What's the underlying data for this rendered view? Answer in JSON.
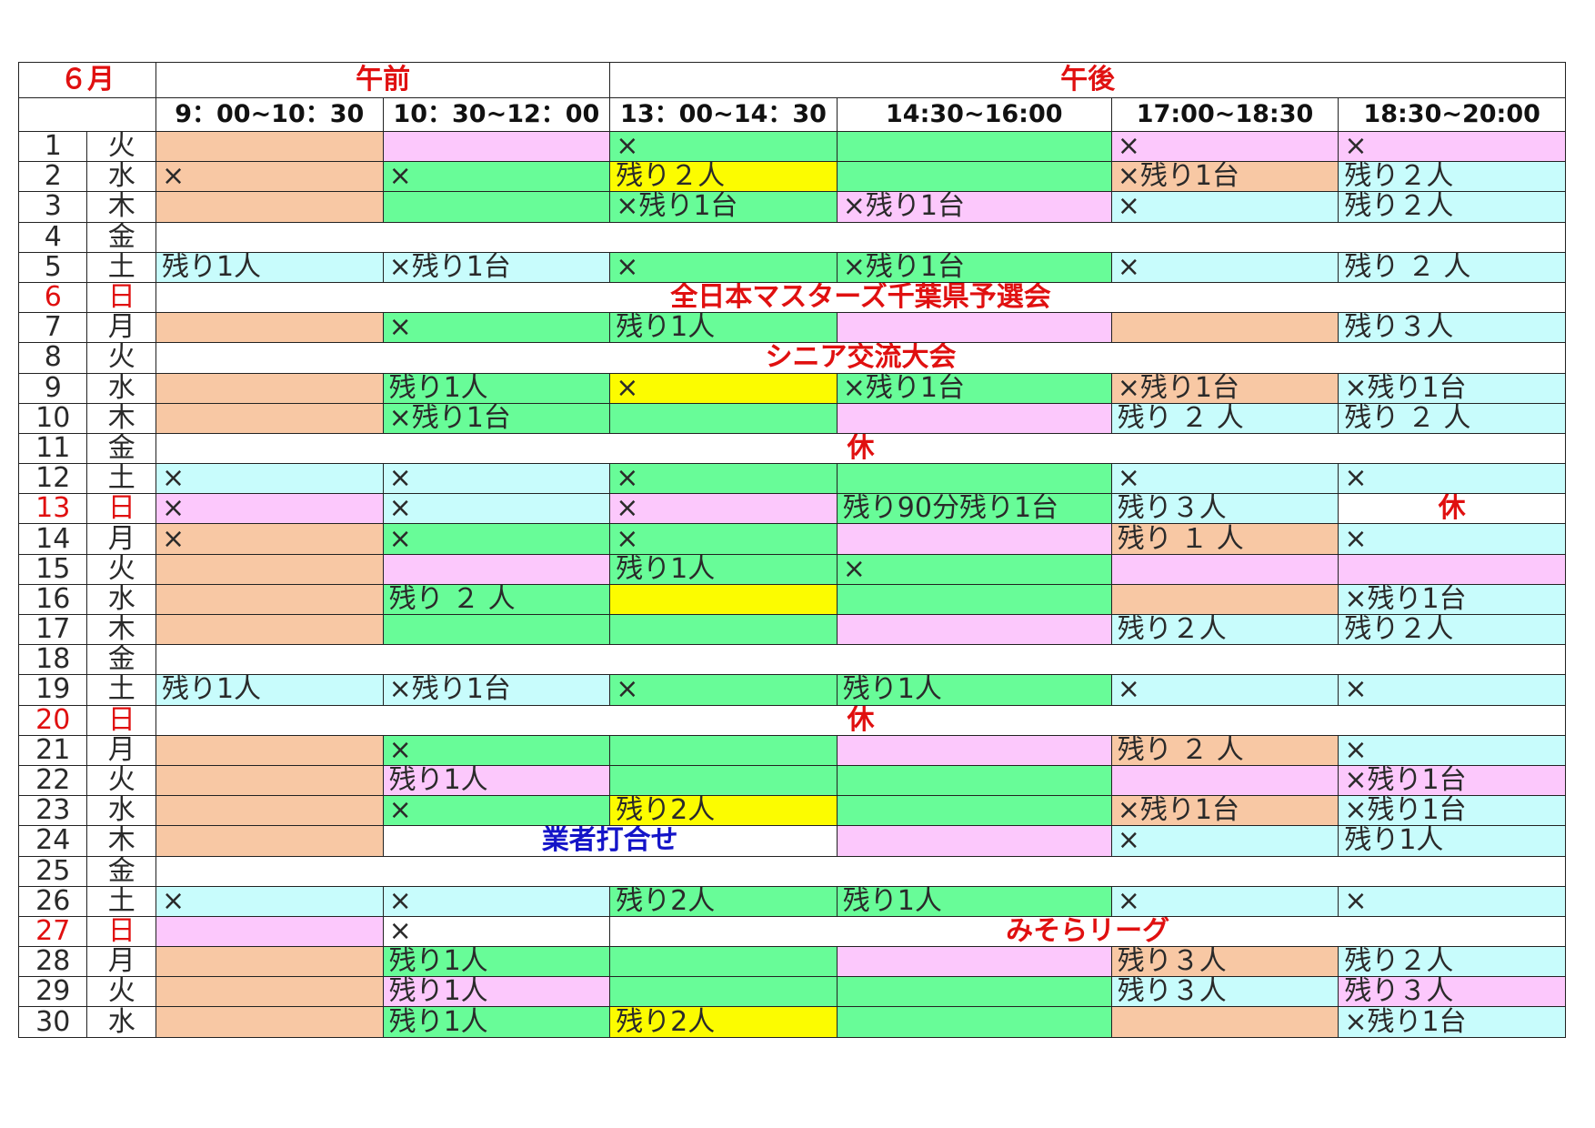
{
  "month_label": "６月",
  "am_label": "午前",
  "pm_label": "午後",
  "slots": [
    "9：00~10：30",
    "10：30~12：00",
    "13：00~14：30",
    "14:30~16:00",
    "17:00~18:30",
    "18:30~20:00"
  ],
  "colors": {
    "peach": "#f8c8a4",
    "pink": "#fcc8fc",
    "green": "#68fc98",
    "cyan": "#c8fcfc",
    "yellow": "#fcfc00",
    "white": "#ffffff",
    "holiday_red": "#e01010",
    "blue_text": "#1414c8"
  },
  "days": [
    {
      "d": "1",
      "w": "火",
      "cells": [
        {
          "t": "",
          "c": "peach"
        },
        {
          "t": "",
          "c": "pink"
        },
        {
          "t": "×",
          "c": "green"
        },
        {
          "t": "",
          "c": "green"
        },
        {
          "t": "×",
          "c": "pink"
        },
        {
          "t": "×",
          "c": "pink"
        }
      ]
    },
    {
      "d": "2",
      "w": "水",
      "cells": [
        {
          "t": "×",
          "c": "peach"
        },
        {
          "t": "×",
          "c": "green"
        },
        {
          "t": "残り２人",
          "c": "yellow"
        },
        {
          "t": "",
          "c": "green"
        },
        {
          "t": "×残り1台",
          "c": "peach"
        },
        {
          "t": "残り２人",
          "c": "cyan"
        }
      ]
    },
    {
      "d": "3",
      "w": "木",
      "cells": [
        {
          "t": "",
          "c": "peach"
        },
        {
          "t": "",
          "c": "green"
        },
        {
          "t": "×残り1台",
          "c": "green"
        },
        {
          "t": "×残り1台",
          "c": "pink"
        },
        {
          "t": "×",
          "c": "cyan"
        },
        {
          "t": "残り２人",
          "c": "cyan"
        }
      ]
    },
    {
      "d": "4",
      "w": "金",
      "span": {
        "from": 0,
        "cols": 6,
        "t": "",
        "c": "white"
      }
    },
    {
      "d": "5",
      "w": "土",
      "cells": [
        {
          "t": "残り1人",
          "c": "cyan"
        },
        {
          "t": "×残り1台",
          "c": "cyan"
        },
        {
          "t": "×",
          "c": "green"
        },
        {
          "t": "×残り1台",
          "c": "green"
        },
        {
          "t": "×",
          "c": "cyan"
        },
        {
          "t": "残り ２ 人",
          "c": "cyan"
        }
      ]
    },
    {
      "d": "6",
      "w": "日",
      "red": true,
      "span": {
        "from": 0,
        "cols": 6,
        "t": "全日本マスターズ千葉県予選会",
        "c": "white"
      }
    },
    {
      "d": "7",
      "w": "月",
      "cells": [
        {
          "t": "",
          "c": "peach"
        },
        {
          "t": "×",
          "c": "green"
        },
        {
          "t": "残り1人",
          "c": "green"
        },
        {
          "t": "",
          "c": "pink"
        },
        {
          "t": "",
          "c": "peach"
        },
        {
          "t": "残り３人",
          "c": "cyan"
        }
      ]
    },
    {
      "d": "8",
      "w": "火",
      "span": {
        "from": 0,
        "cols": 6,
        "t": "シニア交流大会",
        "c": "white"
      }
    },
    {
      "d": "9",
      "w": "水",
      "cells": [
        {
          "t": "",
          "c": "peach"
        },
        {
          "t": "残り1人",
          "c": "green"
        },
        {
          "t": "×",
          "c": "yellow"
        },
        {
          "t": "×残り1台",
          "c": "green"
        },
        {
          "t": "×残り1台",
          "c": "peach"
        },
        {
          "t": "×残り1台",
          "c": "cyan"
        }
      ]
    },
    {
      "d": "10",
      "w": "木",
      "cells": [
        {
          "t": "",
          "c": "peach"
        },
        {
          "t": "×残り1台",
          "c": "green"
        },
        {
          "t": "",
          "c": "green"
        },
        {
          "t": "",
          "c": "pink"
        },
        {
          "t": "残り ２ 人",
          "c": "cyan"
        },
        {
          "t": "残り ２ 人",
          "c": "cyan"
        }
      ]
    },
    {
      "d": "11",
      "w": "金",
      "span": {
        "from": 0,
        "cols": 6,
        "t": "休",
        "c": "white"
      }
    },
    {
      "d": "12",
      "w": "土",
      "cells": [
        {
          "t": "×",
          "c": "cyan"
        },
        {
          "t": "×",
          "c": "cyan"
        },
        {
          "t": "×",
          "c": "green"
        },
        {
          "t": "",
          "c": "green"
        },
        {
          "t": "×",
          "c": "cyan"
        },
        {
          "t": "×",
          "c": "cyan"
        }
      ]
    },
    {
      "d": "13",
      "w": "日",
      "red": true,
      "cells": [
        {
          "t": "×",
          "c": "pink"
        },
        {
          "t": "×",
          "c": "cyan"
        },
        {
          "t": "×",
          "c": "pink"
        },
        {
          "t": "残り90分残り1台",
          "c": "green"
        },
        {
          "t": "残り３人",
          "c": "cyan"
        },
        {
          "t": "休",
          "c": "white",
          "banner": true
        }
      ]
    },
    {
      "d": "14",
      "w": "月",
      "cells": [
        {
          "t": "×",
          "c": "peach"
        },
        {
          "t": "×",
          "c": "green"
        },
        {
          "t": "×",
          "c": "green"
        },
        {
          "t": "",
          "c": "pink"
        },
        {
          "t": "残り １ 人",
          "c": "peach"
        },
        {
          "t": "×",
          "c": "cyan"
        }
      ]
    },
    {
      "d": "15",
      "w": "火",
      "cells": [
        {
          "t": "",
          "c": "peach"
        },
        {
          "t": "",
          "c": "pink"
        },
        {
          "t": "残り1人",
          "c": "green"
        },
        {
          "t": "×",
          "c": "green"
        },
        {
          "t": "",
          "c": "pink"
        },
        {
          "t": "",
          "c": "pink"
        }
      ]
    },
    {
      "d": "16",
      "w": "水",
      "cells": [
        {
          "t": "",
          "c": "peach"
        },
        {
          "t": "残り ２ 人",
          "c": "green"
        },
        {
          "t": "",
          "c": "yellow"
        },
        {
          "t": "",
          "c": "green"
        },
        {
          "t": "",
          "c": "peach"
        },
        {
          "t": "×残り1台",
          "c": "cyan"
        }
      ]
    },
    {
      "d": "17",
      "w": "木",
      "cells": [
        {
          "t": "",
          "c": "peach"
        },
        {
          "t": "",
          "c": "green"
        },
        {
          "t": "",
          "c": "green"
        },
        {
          "t": "",
          "c": "pink"
        },
        {
          "t": "残り２人",
          "c": "cyan"
        },
        {
          "t": "残り２人",
          "c": "cyan"
        }
      ]
    },
    {
      "d": "18",
      "w": "金",
      "span": {
        "from": 0,
        "cols": 6,
        "t": "",
        "c": "white"
      }
    },
    {
      "d": "19",
      "w": "土",
      "cells": [
        {
          "t": "残り1人",
          "c": "cyan"
        },
        {
          "t": "×残り1台",
          "c": "cyan"
        },
        {
          "t": "×",
          "c": "green"
        },
        {
          "t": "残り1人",
          "c": "green"
        },
        {
          "t": "×",
          "c": "cyan"
        },
        {
          "t": "×",
          "c": "cyan"
        }
      ]
    },
    {
      "d": "20",
      "w": "日",
      "red": true,
      "span": {
        "from": 0,
        "cols": 6,
        "t": "休",
        "c": "white"
      }
    },
    {
      "d": "21",
      "w": "月",
      "cells": [
        {
          "t": "",
          "c": "peach"
        },
        {
          "t": "×",
          "c": "green"
        },
        {
          "t": "",
          "c": "green"
        },
        {
          "t": "",
          "c": "pink"
        },
        {
          "t": "残り ２ 人",
          "c": "peach"
        },
        {
          "t": "×",
          "c": "cyan"
        }
      ]
    },
    {
      "d": "22",
      "w": "火",
      "cells": [
        {
          "t": "",
          "c": "peach"
        },
        {
          "t": "残り1人",
          "c": "pink"
        },
        {
          "t": "",
          "c": "green"
        },
        {
          "t": "",
          "c": "green"
        },
        {
          "t": "",
          "c": "pink"
        },
        {
          "t": "×残り1台",
          "c": "pink"
        }
      ]
    },
    {
      "d": "23",
      "w": "水",
      "cells": [
        {
          "t": "",
          "c": "peach"
        },
        {
          "t": "×",
          "c": "green"
        },
        {
          "t": "残り2人",
          "c": "yellow"
        },
        {
          "t": "",
          "c": "green"
        },
        {
          "t": "×残り1台",
          "c": "peach"
        },
        {
          "t": "×残り1台",
          "c": "cyan"
        }
      ]
    },
    {
      "d": "24",
      "w": "木",
      "cells": [
        {
          "t": "",
          "c": "peach"
        },
        {
          "t": "業者打合せ",
          "c": "white",
          "span": 2,
          "banner": true,
          "blue": true
        },
        {
          "t": "",
          "c": "pink"
        },
        {
          "t": "×",
          "c": "cyan"
        },
        {
          "t": "残り1人",
          "c": "cyan"
        }
      ]
    },
    {
      "d": "25",
      "w": "金",
      "span": {
        "from": 0,
        "cols": 6,
        "t": "",
        "c": "white"
      }
    },
    {
      "d": "26",
      "w": "土",
      "cells": [
        {
          "t": "×",
          "c": "cyan"
        },
        {
          "t": "×",
          "c": "cyan"
        },
        {
          "t": "残り2人",
          "c": "green"
        },
        {
          "t": "残り1人",
          "c": "green"
        },
        {
          "t": "×",
          "c": "cyan"
        },
        {
          "t": "×",
          "c": "cyan"
        }
      ]
    },
    {
      "d": "27",
      "w": "日",
      "red": true,
      "cells": [
        {
          "t": "",
          "c": "pink"
        },
        {
          "t": "×",
          "c": "white"
        },
        {
          "t": "みそらリーグ",
          "c": "white",
          "span": 4,
          "banner": true
        }
      ]
    },
    {
      "d": "28",
      "w": "月",
      "cells": [
        {
          "t": "",
          "c": "peach"
        },
        {
          "t": "残り1人",
          "c": "green"
        },
        {
          "t": "",
          "c": "green"
        },
        {
          "t": "",
          "c": "pink"
        },
        {
          "t": "残り３人",
          "c": "peach"
        },
        {
          "t": "残り２人",
          "c": "cyan"
        }
      ]
    },
    {
      "d": "29",
      "w": "火",
      "cells": [
        {
          "t": "",
          "c": "peach"
        },
        {
          "t": "残り1人",
          "c": "pink"
        },
        {
          "t": "",
          "c": "green"
        },
        {
          "t": "",
          "c": "green"
        },
        {
          "t": "残り３人",
          "c": "cyan"
        },
        {
          "t": "残り３人",
          "c": "pink"
        }
      ]
    },
    {
      "d": "30",
      "w": "水",
      "cells": [
        {
          "t": "",
          "c": "peach"
        },
        {
          "t": "残り1人",
          "c": "green"
        },
        {
          "t": "残り2人",
          "c": "yellow"
        },
        {
          "t": "",
          "c": "green"
        },
        {
          "t": "",
          "c": "peach"
        },
        {
          "t": "×残り1台",
          "c": "cyan"
        }
      ]
    }
  ]
}
